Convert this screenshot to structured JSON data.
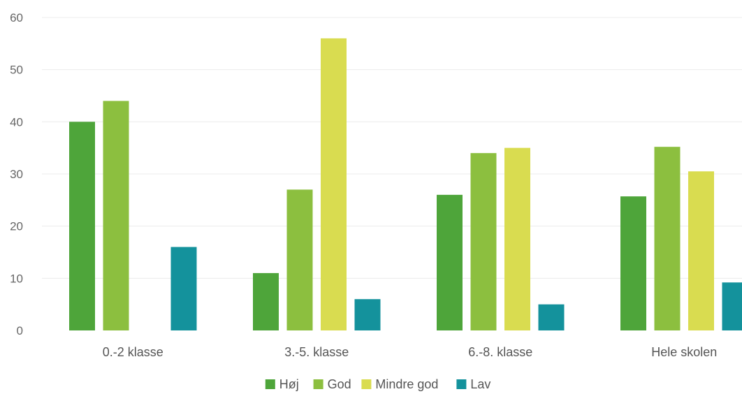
{
  "chart_data": {
    "type": "bar",
    "categories": [
      "0.-2 klasse",
      "3.-5. klasse",
      "6.-8. klasse",
      "Hele skolen"
    ],
    "series": [
      {
        "name": "Høj",
        "color": "#4ea53a",
        "values": [
          40,
          11,
          26,
          25.7
        ]
      },
      {
        "name": "God",
        "color": "#8cbf3f",
        "values": [
          44,
          27,
          34,
          35.2
        ]
      },
      {
        "name": "Mindre god",
        "color": "#d9dc50",
        "values": [
          0,
          56,
          35,
          30.5
        ]
      },
      {
        "name": "Lav",
        "color": "#14929c",
        "values": [
          16,
          6,
          5,
          9.2
        ]
      }
    ],
    "yticks": [
      "0",
      "10",
      "20",
      "30",
      "40",
      "50",
      "60"
    ],
    "ylim": [
      0,
      60
    ],
    "grid": true,
    "legend_position": "bottom-center",
    "title": "",
    "xlabel": "",
    "ylabel": ""
  }
}
